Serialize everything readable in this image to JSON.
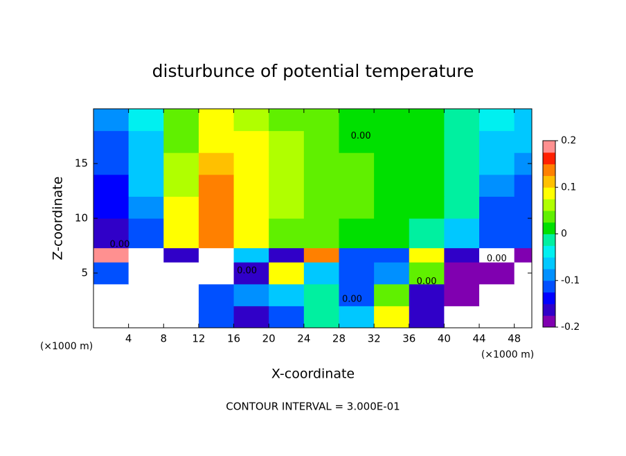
{
  "chart_data": {
    "type": "heatmap",
    "title": "disturbunce of potential temperature",
    "x_label": "X-coordinate",
    "y_label": "Z-coordinate",
    "x_unit": "(×1000 m)",
    "footer": "CONTOUR INTERVAL = 3.000E-01",
    "xlim": [
      0,
      50
    ],
    "ylim": [
      0,
      20
    ],
    "xticks": [
      4,
      8,
      12,
      16,
      20,
      24,
      28,
      32,
      36,
      40,
      44,
      48
    ],
    "yticks": [
      5,
      10,
      15
    ],
    "x_edges": [
      0,
      4,
      8,
      12,
      16,
      20,
      24,
      28,
      32,
      36,
      40,
      44,
      48,
      50
    ],
    "z_edges": [
      0,
      2,
      4,
      6,
      7.3,
      10,
      12,
      14,
      16,
      18,
      20
    ],
    "values": [
      [
        0.3,
        0.3,
        0.3,
        -0.1,
        -0.15,
        -0.1,
        0,
        -0.05,
        0.1,
        -0.15,
        0.3,
        0.3,
        0.3
      ],
      [
        0.3,
        0.3,
        0.3,
        -0.12,
        -0.08,
        -0.05,
        0,
        -0.1,
        0.05,
        -0.15,
        -0.18,
        0.3,
        0.3
      ],
      [
        -0.1,
        0.3,
        0.3,
        0.3,
        -0.15,
        0.1,
        -0.05,
        -0.12,
        -0.08,
        0.05,
        -0.18,
        -0.2,
        0.3
      ],
      [
        0.2,
        0.3,
        -0.15,
        0.3,
        -0.05,
        -0.15,
        0.15,
        -0.1,
        -0.1,
        0.1,
        -0.15,
        0.3,
        -0.18
      ],
      [
        -0.15,
        -0.1,
        0.1,
        0.15,
        0.1,
        0.05,
        0.04,
        0.02,
        0.01,
        0,
        -0.05,
        -0.12,
        -0.12
      ],
      [
        -0.14,
        -0.08,
        0.08,
        0.15,
        0.1,
        0.06,
        0.05,
        0.03,
        0.01,
        0.01,
        -0.02,
        -0.1,
        -0.12
      ],
      [
        -0.13,
        -0.07,
        0.07,
        0.13,
        0.1,
        0.07,
        0.05,
        0.03,
        0.02,
        0.02,
        0,
        -0.08,
        -0.11
      ],
      [
        -0.12,
        -0.06,
        0.06,
        0.11,
        0.09,
        0.07,
        0.05,
        0.03,
        0.02,
        0.02,
        0,
        -0.06,
        -0.09
      ],
      [
        -0.1,
        -0.05,
        0.05,
        0.09,
        0.08,
        0.06,
        0.04,
        0.02,
        0.01,
        0.01,
        0,
        -0.05,
        -0.07
      ],
      [
        -0.08,
        -0.04,
        0.04,
        0.08,
        0.07,
        0.05,
        0.03,
        0.01,
        0.01,
        0.01,
        0,
        -0.04,
        -0.06
      ]
    ],
    "levels": [
      -0.2,
      -0.175,
      -0.15,
      -0.125,
      -0.1,
      -0.075,
      -0.05,
      -0.025,
      0,
      0.025,
      0.05,
      0.075,
      0.1,
      0.125,
      0.15,
      0.175,
      0.2
    ],
    "colors": [
      "#8000b0",
      "#3000c8",
      "#0000ff",
      "#0050ff",
      "#0090ff",
      "#00c8ff",
      "#00f0f0",
      "#00f0a0",
      "#00e000",
      "#60f000",
      "#b0ff00",
      "#ffff00",
      "#ffc000",
      "#ff8000",
      "#ff2000",
      "#ff9090",
      "#ffc8c8"
    ],
    "out_of_range_color": "#ffffff",
    "colorbar_ticks": [
      0.2,
      0.1,
      0,
      -0.1,
      -0.2
    ],
    "contour_labels": [
      {
        "text": "0.00",
        "x": 3,
        "z": 7.6
      },
      {
        "text": "0.00",
        "x": 17.5,
        "z": 5.2
      },
      {
        "text": "0.00",
        "x": 38,
        "z": 4.2
      },
      {
        "text": "0.00",
        "x": 29.5,
        "z": 2.6
      },
      {
        "text": "0.00",
        "x": 30.5,
        "z": 17.5
      },
      {
        "text": "0.00",
        "x": 46,
        "z": 6.3
      }
    ]
  }
}
